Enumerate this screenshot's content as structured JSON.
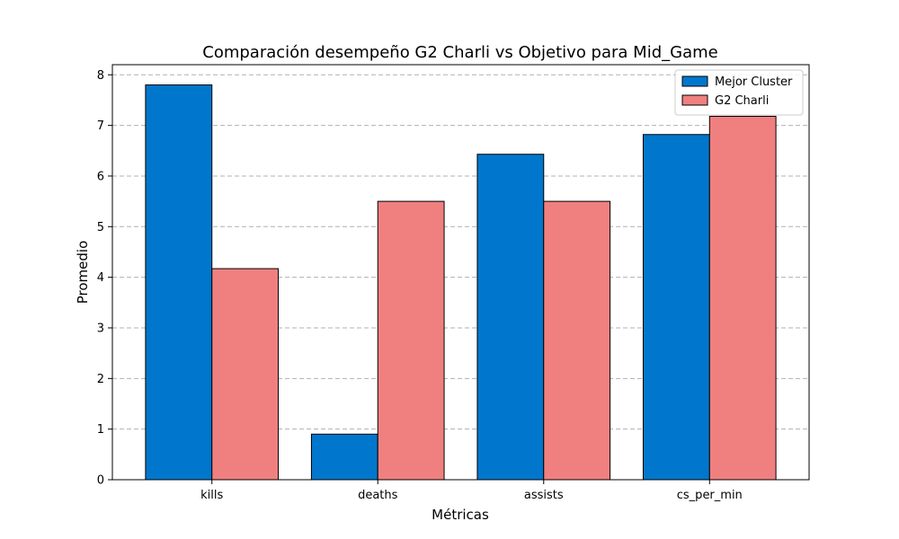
{
  "chart_data": {
    "type": "bar",
    "title": "Comparación desempeño G2 Charli vs Objetivo para Mid_Game",
    "xlabel": "Métricas",
    "ylabel": "Promedio",
    "categories": [
      "kills",
      "deaths",
      "assists",
      "cs_per_min"
    ],
    "series": [
      {
        "name": "Mejor Cluster",
        "values": [
          7.8,
          0.9,
          6.43,
          6.82
        ],
        "color": "#0077cc"
      },
      {
        "name": "G2 Charli",
        "values": [
          4.17,
          5.5,
          5.5,
          7.18
        ],
        "color": "#f08080"
      }
    ],
    "ylim": [
      0,
      8.2
    ],
    "yticks": [
      0,
      1,
      2,
      3,
      4,
      5,
      6,
      7,
      8
    ],
    "grid": "y-dashed",
    "legend": "top-right"
  }
}
